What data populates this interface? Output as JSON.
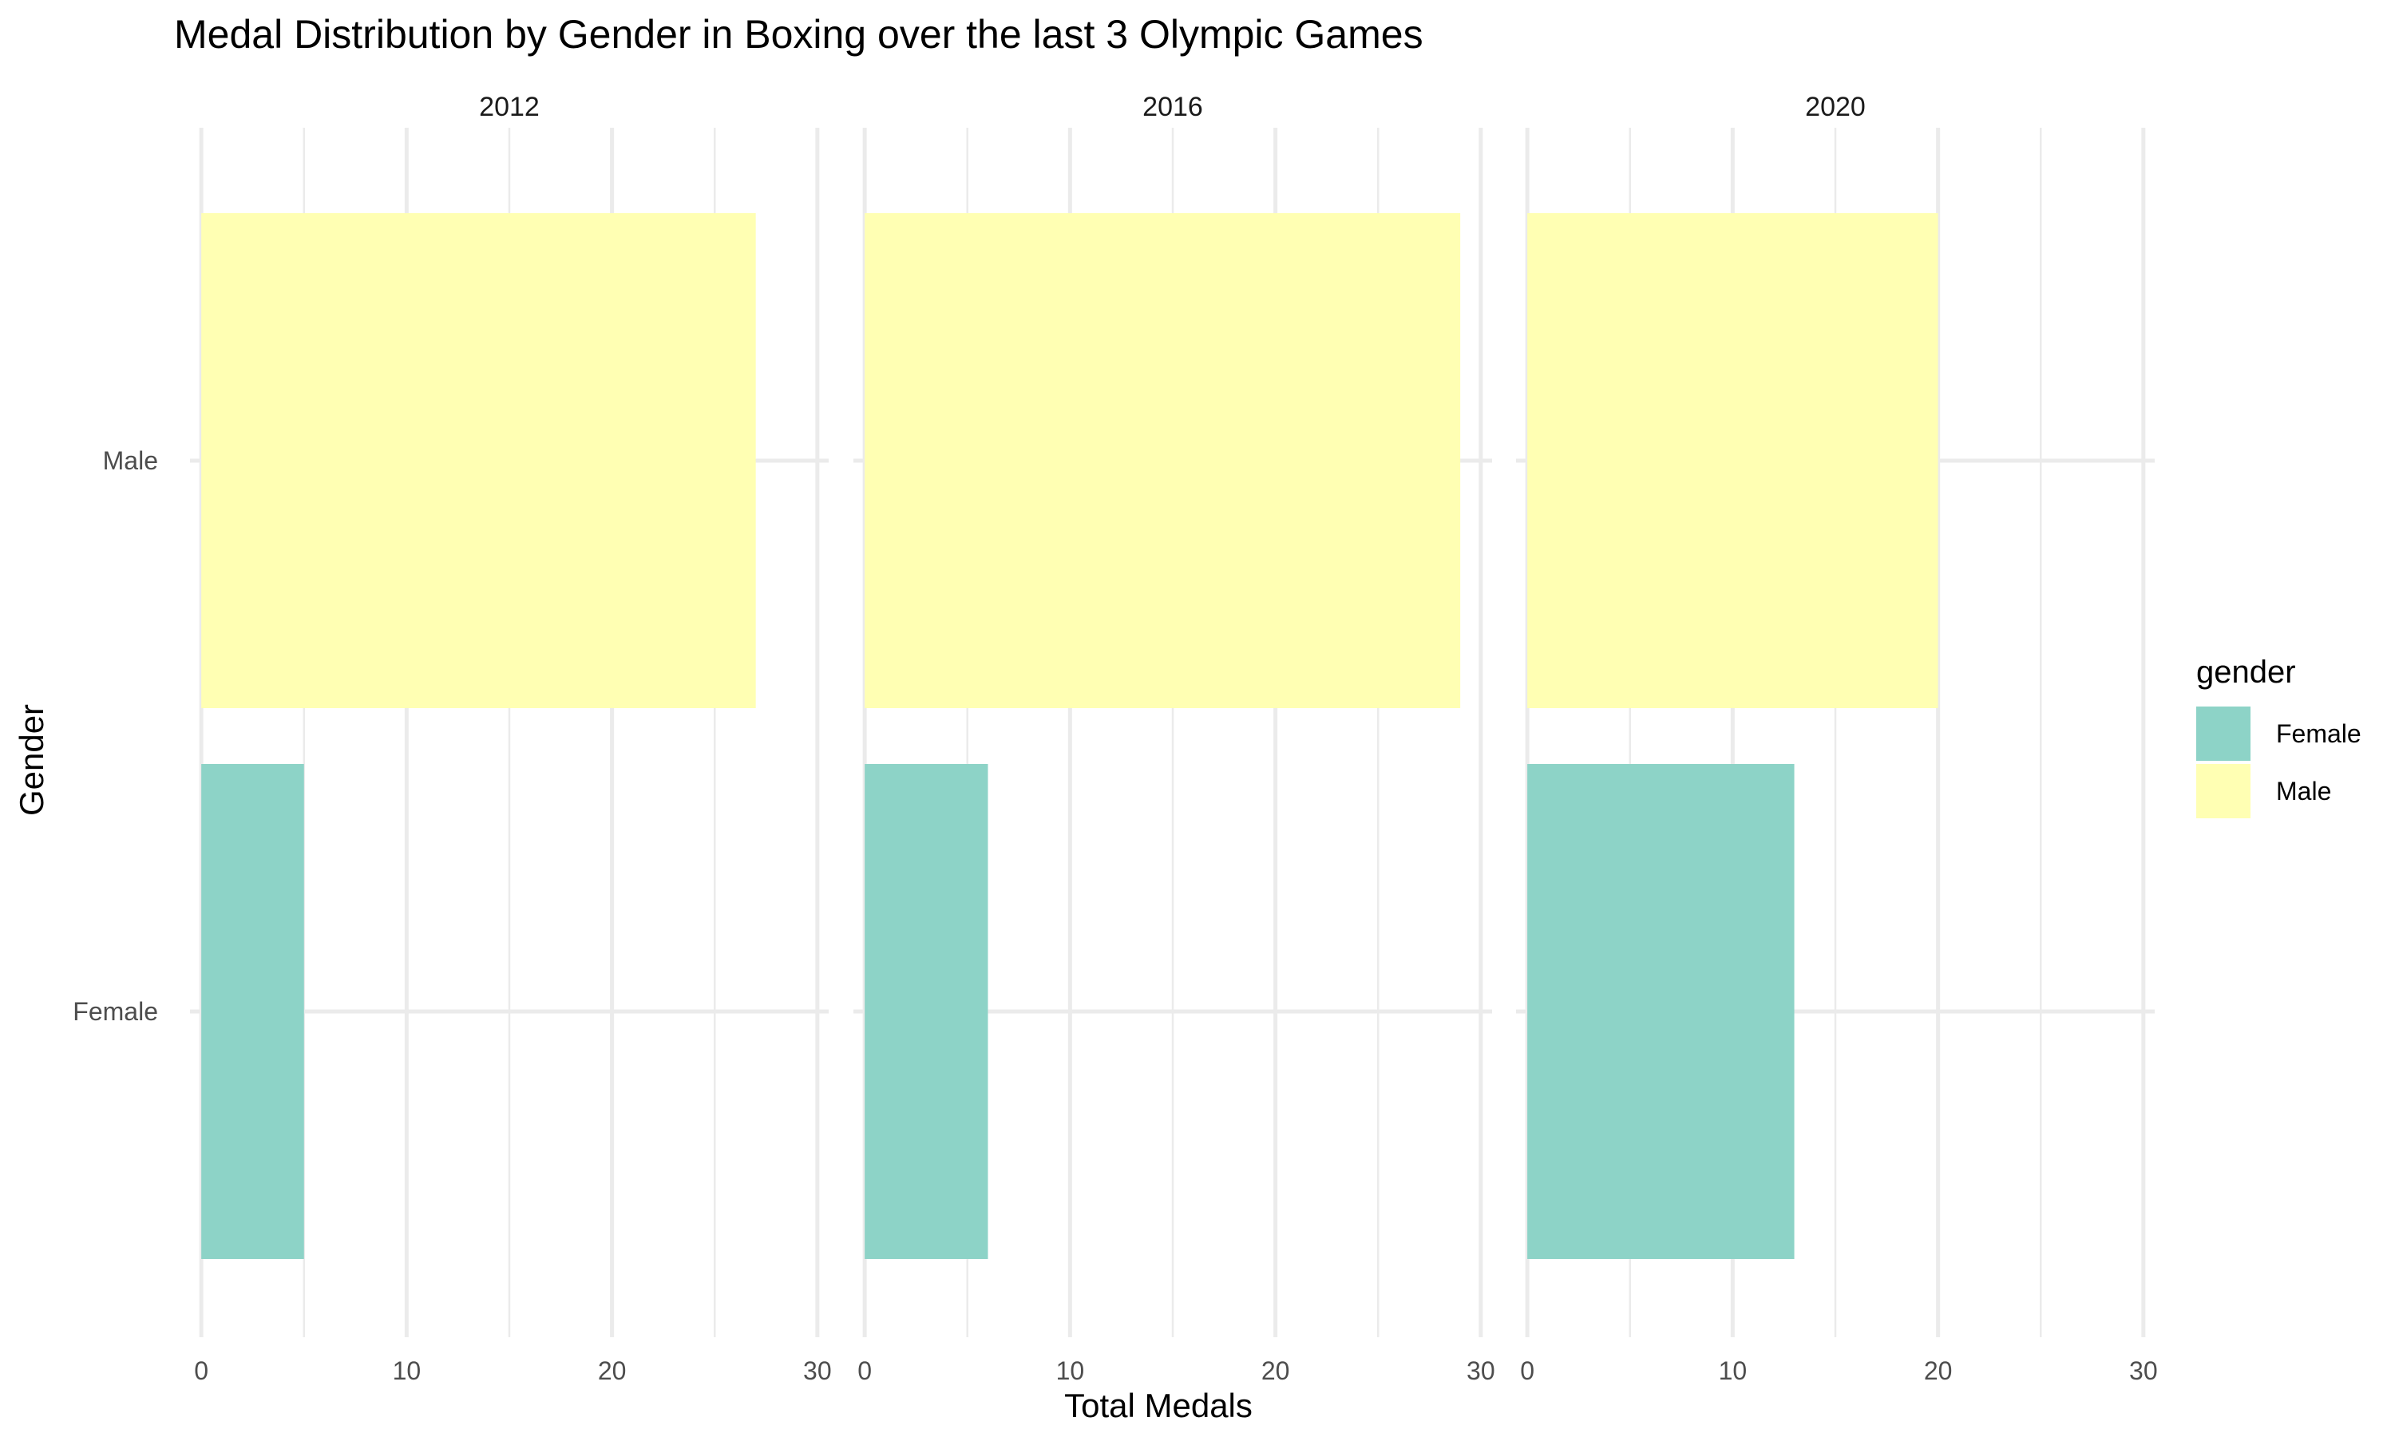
{
  "chart_data": {
    "type": "bar",
    "orientation": "horizontal",
    "title": "Medal Distribution by Gender in Boxing over the last 3 Olympic Games",
    "xlabel": "Total Medals",
    "ylabel": "Gender",
    "xlim": [
      0,
      30
    ],
    "x_ticks": [
      0,
      10,
      20,
      30
    ],
    "categories": [
      "Male",
      "Female"
    ],
    "facets": [
      {
        "label": "2012",
        "values": {
          "Male": 27,
          "Female": 5
        }
      },
      {
        "label": "2016",
        "values": {
          "Male": 29,
          "Female": 6
        }
      },
      {
        "label": "2020",
        "values": {
          "Male": 20,
          "Female": 13
        }
      }
    ],
    "legend": {
      "title": "gender",
      "position": "right",
      "items": [
        {
          "label": "Female",
          "color": "#8DD3C7"
        },
        {
          "label": "Male",
          "color": "#FFFFB3"
        }
      ]
    },
    "grid": true
  }
}
